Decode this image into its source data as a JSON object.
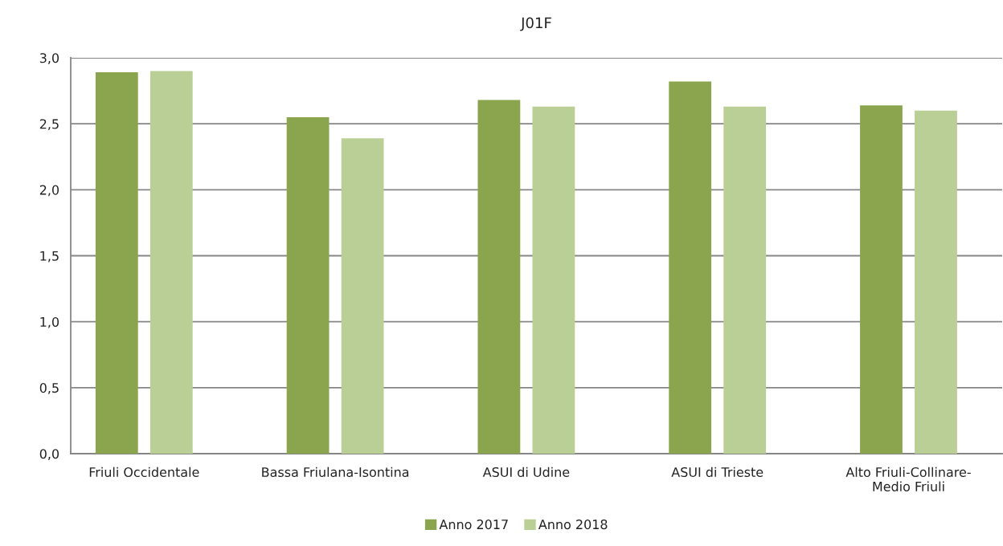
{
  "chart_data": {
    "type": "bar",
    "title": "J01F",
    "categories": [
      "Friuli Occidentale",
      "Bassa Friulana-Isontina",
      "ASUI di Udine",
      "ASUI di Trieste",
      "Alto Friuli-Collinare-\nMedio Friuli"
    ],
    "series": [
      {
        "name": "Anno 2017",
        "color": "#8aa54e",
        "values": [
          2.89,
          2.55,
          2.68,
          2.82,
          2.64
        ]
      },
      {
        "name": "Anno 2018",
        "color": "#b9cf96",
        "values": [
          2.9,
          2.39,
          2.63,
          2.63,
          2.6
        ]
      }
    ],
    "ylim": [
      0,
      3
    ],
    "yticks": [
      {
        "value": 0,
        "label": "0,0"
      },
      {
        "value": 0.5,
        "label": "0,5"
      },
      {
        "value": 1,
        "label": "1,0"
      },
      {
        "value": 1.5,
        "label": "1,5"
      },
      {
        "value": 2,
        "label": "2,0"
      },
      {
        "value": 2.5,
        "label": "2,5"
      },
      {
        "value": 3,
        "label": "3,0"
      }
    ],
    "grid": "y",
    "legend": "bottom"
  }
}
